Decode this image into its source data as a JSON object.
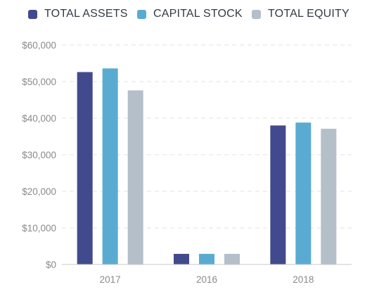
{
  "chart_data": {
    "type": "bar",
    "categories": [
      "2017",
      "2016",
      "2018"
    ],
    "series": [
      {
        "name": "TOTAL ASSETS",
        "color": "#414a8c",
        "values": [
          52600,
          2900,
          38000
        ]
      },
      {
        "name": "CAPITAL STOCK",
        "color": "#5aabd1",
        "values": [
          53600,
          2900,
          38800
        ]
      },
      {
        "name": "TOTAL EQUITY",
        "color": "#b4bfca",
        "values": [
          47600,
          2900,
          37100
        ]
      }
    ],
    "y_ticks": [
      "$0",
      "$10,000",
      "$20,000",
      "$30,000",
      "$40,000",
      "$50,000",
      "$60,000"
    ],
    "ylim": [
      0,
      60000
    ],
    "grid": true,
    "legend_position": "top"
  }
}
